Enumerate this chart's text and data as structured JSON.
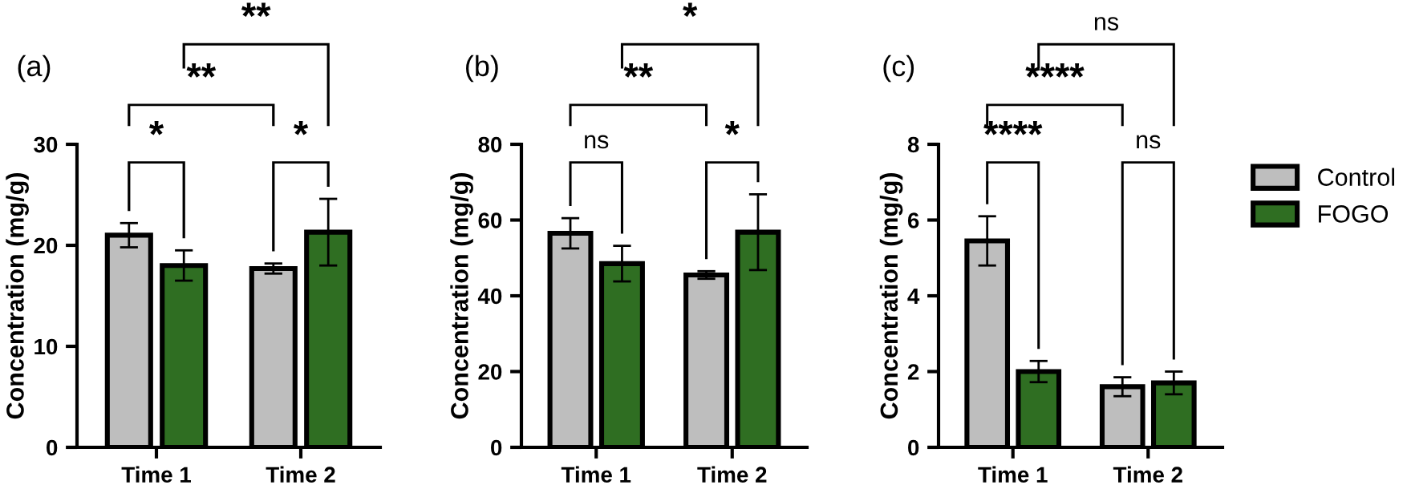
{
  "chart_data": [
    {
      "type": "bar",
      "title": "(a)",
      "ylabel": "Concentration (mg/g)",
      "categories": [
        "Time 1",
        "Time 2"
      ],
      "ylim": [
        0,
        30
      ],
      "yticks": [
        0,
        10,
        20,
        30
      ],
      "grid": false,
      "legend": false,
      "series": [
        {
          "color": "#bebebe",
          "values": [
            21.0,
            17.7
          ],
          "errors": [
            1.2,
            0.5
          ]
        },
        {
          "color": "#2f6e22",
          "values": [
            18.0,
            21.3
          ],
          "errors": [
            1.5,
            3.3
          ]
        }
      ],
      "annotations": [
        "*",
        "*",
        "**",
        "**"
      ]
    },
    {
      "type": "bar",
      "title": "(b)",
      "ylabel": "Concentration (mg/g)",
      "categories": [
        "Time 1",
        "Time 2"
      ],
      "ylim": [
        0,
        80
      ],
      "yticks": [
        0,
        20,
        40,
        60,
        80
      ],
      "grid": false,
      "legend": false,
      "series": [
        {
          "color": "#bebebe",
          "values": [
            56.5,
            45.5
          ],
          "errors": [
            4.0,
            1.0
          ]
        },
        {
          "color": "#2f6e22",
          "values": [
            48.5,
            56.8
          ],
          "errors": [
            4.7,
            10.0
          ]
        }
      ],
      "annotations": [
        "ns",
        "*",
        "**",
        "*"
      ]
    },
    {
      "type": "bar",
      "title": "(c)",
      "ylabel": "Concentration (mg/g)",
      "categories": [
        "Time 1",
        "Time 2"
      ],
      "ylim": [
        0,
        8
      ],
      "yticks": [
        0,
        2,
        4,
        6,
        8
      ],
      "grid": false,
      "legend": "right",
      "series": [
        {
          "name": "Control",
          "color": "#bebebe",
          "values": [
            5.45,
            1.6
          ],
          "errors": [
            0.65,
            0.25
          ]
        },
        {
          "name": "FOGO",
          "color": "#2f6e22",
          "values": [
            2.0,
            1.7
          ],
          "errors": [
            0.28,
            0.3
          ]
        }
      ],
      "annotations": [
        "****",
        "ns",
        "****",
        "ns"
      ]
    }
  ]
}
